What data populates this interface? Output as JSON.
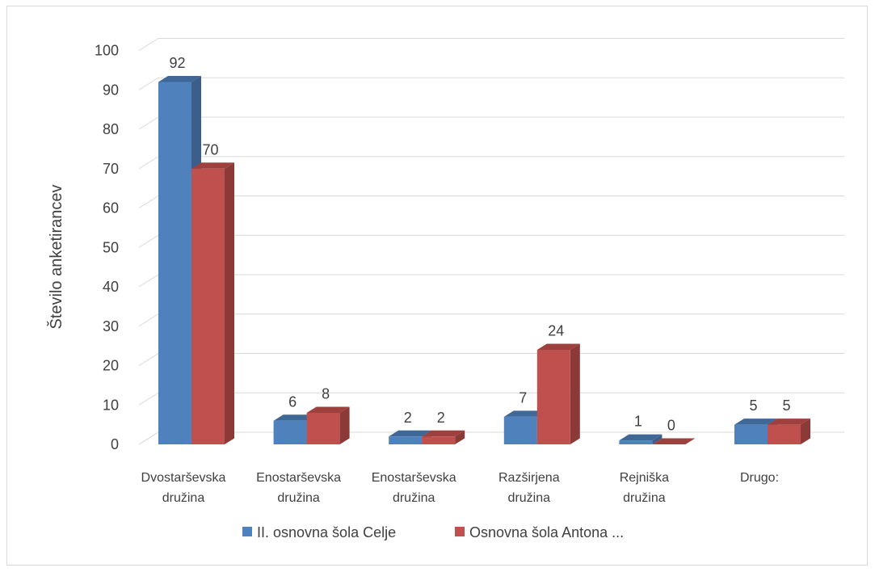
{
  "chart_data": {
    "type": "bar",
    "title": "",
    "xlabel": "",
    "ylabel": "Število anketirancev",
    "ylim": [
      0,
      100
    ],
    "yticks": [
      "0",
      "10",
      "20",
      "30",
      "40",
      "50",
      "60",
      "70",
      "80",
      "90",
      "100"
    ],
    "categories": [
      [
        "Dvostarševska",
        "družina"
      ],
      [
        "Enostarševska",
        "družina"
      ],
      [
        "Enostarševska",
        "družina"
      ],
      [
        "Razširjena",
        "družina"
      ],
      [
        "Rejniška",
        "družina"
      ],
      [
        "Drugo:"
      ]
    ],
    "series": [
      {
        "name": "II. osnovna šola Celje",
        "values": [
          92,
          6,
          2,
          7,
          1,
          5
        ],
        "color": "#4f81bd",
        "side": "#3b5f8a",
        "top": "#3f6897"
      },
      {
        "name": "Osnovna šola Antona ...",
        "values": [
          70,
          8,
          2,
          24,
          0,
          5
        ],
        "color": "#c0504d",
        "side": "#8c3a38",
        "top": "#9e403e"
      }
    ],
    "data_labels": true,
    "grid": true,
    "legend": "bottom",
    "style": "3d-clustered-column"
  }
}
